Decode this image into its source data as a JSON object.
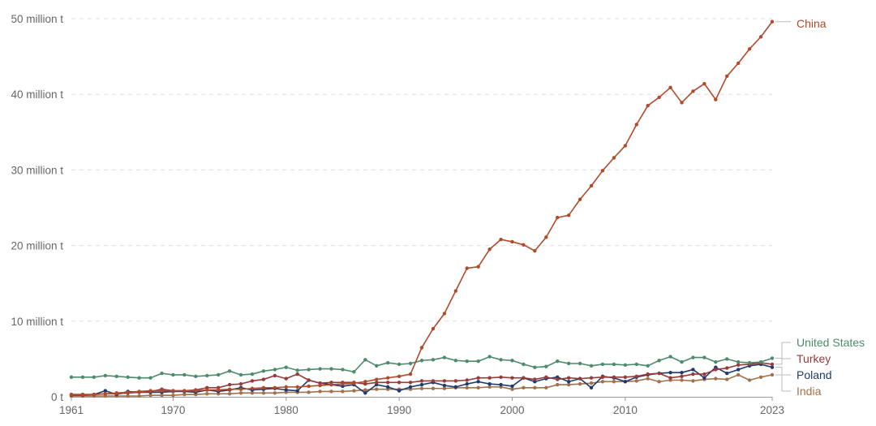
{
  "chart_data": {
    "type": "line",
    "title": "",
    "xlabel": "",
    "ylabel": "",
    "ylim": [
      0,
      50
    ],
    "xlim": [
      1961,
      2023
    ],
    "y_ticks": [
      {
        "value": 0,
        "label": "0 t"
      },
      {
        "value": 10,
        "label": "10 million t"
      },
      {
        "value": 20,
        "label": "20 million t"
      },
      {
        "value": 30,
        "label": "30 million t"
      },
      {
        "value": 40,
        "label": "40 million t"
      },
      {
        "value": 50,
        "label": "50 million t"
      }
    ],
    "x_ticks": [
      {
        "value": 1961,
        "label": "1961"
      },
      {
        "value": 1970,
        "label": "1970"
      },
      {
        "value": 1980,
        "label": "1980"
      },
      {
        "value": 1990,
        "label": "1990"
      },
      {
        "value": 2000,
        "label": "2000"
      },
      {
        "value": 2010,
        "label": "2010"
      },
      {
        "value": 2023,
        "label": "2023"
      }
    ],
    "grid": true,
    "legend": "right-end labels",
    "x": [
      1961,
      1962,
      1963,
      1964,
      1965,
      1966,
      1967,
      1968,
      1969,
      1970,
      1971,
      1972,
      1973,
      1974,
      1975,
      1976,
      1977,
      1978,
      1979,
      1980,
      1981,
      1982,
      1983,
      1984,
      1985,
      1986,
      1987,
      1988,
      1989,
      1990,
      1991,
      1992,
      1993,
      1994,
      1995,
      1996,
      1997,
      1998,
      1999,
      2000,
      2001,
      2002,
      2003,
      2004,
      2005,
      2006,
      2007,
      2008,
      2009,
      2010,
      2011,
      2012,
      2013,
      2014,
      2015,
      2016,
      2017,
      2018,
      2019,
      2020,
      2021,
      2022,
      2023
    ],
    "series": [
      {
        "name": "China",
        "color": "#b04a2a",
        "values": [
          0.3,
          0.3,
          0.3,
          0.4,
          0.5,
          0.6,
          0.7,
          0.8,
          0.8,
          0.8,
          0.8,
          0.8,
          0.9,
          0.9,
          1.0,
          1.0,
          1.1,
          1.2,
          1.2,
          1.3,
          1.3,
          1.4,
          1.5,
          1.6,
          1.7,
          1.8,
          2.0,
          2.3,
          2.5,
          2.7,
          3.0,
          6.5,
          9.0,
          11.0,
          14.0,
          17.0,
          17.2,
          19.5,
          20.8,
          20.5,
          20.1,
          19.3,
          21.1,
          23.7,
          24.0,
          26.1,
          27.9,
          29.9,
          31.6,
          33.2,
          36.0,
          38.5,
          39.6,
          40.9,
          38.9,
          40.4,
          41.4,
          39.3,
          42.4,
          44.1,
          46.0,
          47.6,
          49.6
        ]
      },
      {
        "name": "United States",
        "color": "#4c8c6c",
        "values": [
          2.6,
          2.6,
          2.6,
          2.8,
          2.7,
          2.6,
          2.5,
          2.5,
          3.1,
          2.9,
          2.9,
          2.7,
          2.8,
          2.9,
          3.4,
          2.9,
          3.0,
          3.4,
          3.6,
          3.9,
          3.5,
          3.6,
          3.7,
          3.7,
          3.6,
          3.3,
          4.9,
          4.1,
          4.5,
          4.3,
          4.4,
          4.8,
          4.9,
          5.2,
          4.8,
          4.7,
          4.7,
          5.3,
          4.9,
          4.8,
          4.3,
          3.9,
          4.0,
          4.7,
          4.4,
          4.4,
          4.1,
          4.3,
          4.3,
          4.2,
          4.3,
          4.1,
          4.8,
          5.3,
          4.6,
          5.2,
          5.2,
          4.6,
          5.0,
          4.6,
          4.5,
          4.6,
          5.1
        ]
      },
      {
        "name": "Turkey",
        "color": "#963a3a",
        "values": [
          0.2,
          0.2,
          0.3,
          0.4,
          0.4,
          0.5,
          0.6,
          0.7,
          1.0,
          0.8,
          0.8,
          0.9,
          1.2,
          1.2,
          1.6,
          1.7,
          2.1,
          2.3,
          2.8,
          2.4,
          3.0,
          2.2,
          1.8,
          1.9,
          1.9,
          1.9,
          1.7,
          1.9,
          1.9,
          1.9,
          1.9,
          2.1,
          2.1,
          2.1,
          2.1,
          2.2,
          2.5,
          2.5,
          2.6,
          2.5,
          2.5,
          2.3,
          2.6,
          2.3,
          2.5,
          2.4,
          2.5,
          2.6,
          2.6,
          2.6,
          2.7,
          3.0,
          3.1,
          2.5,
          2.7,
          3.0,
          3.0,
          3.6,
          3.8,
          4.2,
          4.3,
          4.5,
          4.3
        ]
      },
      {
        "name": "Poland",
        "color": "#1e3a6e",
        "values": [
          0.3,
          0.3,
          0.3,
          0.8,
          0.3,
          0.7,
          0.6,
          0.6,
          0.6,
          0.7,
          0.7,
          0.6,
          0.9,
          0.7,
          0.9,
          1.2,
          0.9,
          1.0,
          1.1,
          0.9,
          0.8,
          2.2,
          1.8,
          1.6,
          1.4,
          1.6,
          0.5,
          1.6,
          1.3,
          0.8,
          1.3,
          1.6,
          1.9,
          1.5,
          1.3,
          1.7,
          2.0,
          1.7,
          1.6,
          1.4,
          2.5,
          2.0,
          2.4,
          2.6,
          2.0,
          2.4,
          1.2,
          2.7,
          2.5,
          2.0,
          2.6,
          2.9,
          3.1,
          3.2,
          3.2,
          3.6,
          2.5,
          3.9,
          3.1,
          3.6,
          4.1,
          4.3,
          3.9
        ]
      },
      {
        "name": "India",
        "color": "#a0714a",
        "values": [
          0.1,
          0.1,
          0.1,
          0.1,
          0.1,
          0.1,
          0.1,
          0.2,
          0.2,
          0.2,
          0.3,
          0.3,
          0.4,
          0.4,
          0.4,
          0.5,
          0.5,
          0.5,
          0.5,
          0.6,
          0.6,
          0.6,
          0.7,
          0.7,
          0.7,
          0.8,
          0.9,
          1.0,
          1.0,
          1.0,
          1.0,
          1.1,
          1.1,
          1.1,
          1.2,
          1.2,
          1.2,
          1.3,
          1.3,
          1.0,
          1.2,
          1.2,
          1.2,
          1.6,
          1.6,
          1.7,
          1.8,
          2.0,
          2.0,
          2.0,
          2.1,
          2.4,
          2.0,
          2.2,
          2.2,
          2.1,
          2.3,
          2.4,
          2.3,
          2.9,
          2.2,
          2.6,
          2.9
        ]
      }
    ]
  }
}
